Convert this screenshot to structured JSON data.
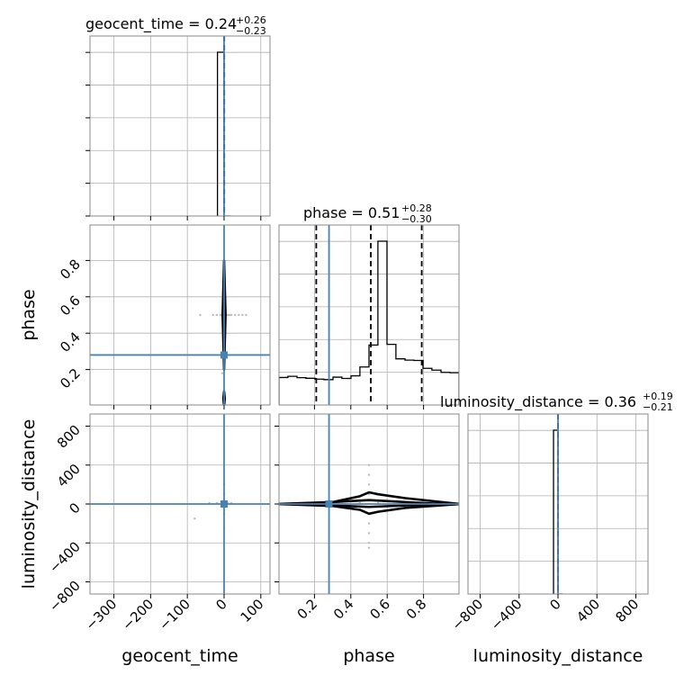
{
  "chart_data": {
    "type": "corner",
    "parameters": [
      "geocent_time",
      "phase",
      "luminosity_distance"
    ],
    "colors": {
      "truth": "#4682b4",
      "hist": "#000000",
      "grid": "#b0b0b0",
      "scatter": "#bbbbbb"
    },
    "titles": [
      {
        "param": "geocent_time",
        "main": "geocent_time = 0.24",
        "plus": "+0.26",
        "minus": "−0.23"
      },
      {
        "param": "phase",
        "main": "phase = 0.51",
        "plus": "+0.28",
        "minus": "−0.30"
      },
      {
        "param": "luminosity_distance",
        "main": "luminosity_distance = 0.36",
        "plus": "+0.19",
        "minus": "−0.21"
      }
    ],
    "ranges": {
      "geocent_time": [
        -365,
        125
      ],
      "phase": [
        0.005,
        0.995
      ],
      "luminosity_distance": [
        -925,
        925
      ]
    },
    "ticks": {
      "geocent_time": [
        -300,
        -200,
        -100,
        0,
        100
      ],
      "phase": [
        0.2,
        0.4,
        0.6,
        0.8
      ],
      "luminosity_distance": [
        -800,
        -400,
        0,
        400,
        800
      ]
    },
    "tick_labels": {
      "geocent_time": [
        "−300",
        "−200",
        "−100",
        "0",
        "100"
      ],
      "phase": [
        "0.2",
        "0.4",
        "0.6",
        "0.8"
      ],
      "luminosity_distance": [
        "−800",
        "−400",
        "0",
        "400",
        "800"
      ]
    },
    "truths": {
      "geocent_time": 0,
      "phase": 0.28,
      "luminosity_distance": 0
    },
    "quantiles": {
      "geocent_time": [
        0.01,
        0.24,
        0.5
      ],
      "phase": [
        0.21,
        0.51,
        0.79
      ],
      "luminosity_distance": [
        -0.05,
        0.36,
        0.55
      ]
    },
    "histograms": {
      "geocent_time": {
        "edges": [
          -18,
          0,
          18
        ],
        "counts": [
          1,
          0
        ]
      },
      "phase": {
        "edges": [
          0.005,
          0.054,
          0.104,
          0.153,
          0.203,
          0.252,
          0.302,
          0.351,
          0.401,
          0.45,
          0.5,
          0.549,
          0.599,
          0.648,
          0.698,
          0.747,
          0.797,
          0.846,
          0.896,
          0.945,
          0.995
        ],
        "counts": [
          0.168,
          0.175,
          0.167,
          0.163,
          0.158,
          0.155,
          0.17,
          0.162,
          0.178,
          0.232,
          0.366,
          1.0,
          0.37,
          0.282,
          0.274,
          0.272,
          0.224,
          0.213,
          0.199,
          0.197
        ]
      },
      "luminosity_distance": {
        "edges": [
          -46,
          0,
          46
        ],
        "counts": [
          1,
          0
        ]
      }
    },
    "scatter": {
      "geocent_time_phase": [
        [
          -65,
          0.5
        ],
        [
          -30,
          0.5
        ],
        [
          -20,
          0.5
        ],
        [
          -10,
          0.5
        ],
        [
          -5,
          0.5
        ],
        [
          10,
          0.5
        ],
        [
          15,
          0.5
        ],
        [
          20,
          0.5
        ],
        [
          30,
          0.5
        ],
        [
          40,
          0.5
        ],
        [
          50,
          0.5
        ],
        [
          60,
          0.5
        ],
        [
          -5,
          0.18
        ],
        [
          2,
          0.35
        ]
      ],
      "geocent_time_luminosity_distance": [
        [
          -80,
          -150
        ],
        [
          -40,
          10
        ],
        [
          -20,
          10
        ],
        [
          -5,
          10
        ],
        [
          10,
          10
        ],
        [
          20,
          10
        ],
        [
          0,
          100
        ],
        [
          0,
          200
        ],
        [
          0,
          -100
        ],
        [
          0,
          -250
        ]
      ],
      "phase_luminosity_distance": [
        [
          0.5,
          100
        ],
        [
          0.5,
          200
        ],
        [
          0.5,
          300
        ],
        [
          0.5,
          400
        ],
        [
          0.5,
          -100
        ],
        [
          0.5,
          -200
        ],
        [
          0.5,
          -300
        ],
        [
          0.5,
          -400
        ],
        [
          0.5,
          -450
        ],
        [
          0.45,
          10
        ],
        [
          0.55,
          10
        ]
      ]
    },
    "contours": {
      "geocent_time_phase": [
        [
          [
            0,
            0.08
          ],
          [
            2,
            0.04
          ],
          [
            0,
            0.0
          ],
          [
            -2,
            0.04
          ]
        ],
        [
          [
            -4,
            0.5
          ],
          [
            0,
            0.8
          ],
          [
            4,
            0.5
          ],
          [
            0,
            0.2
          ]
        ],
        [
          [
            0,
            0.58
          ],
          [
            3,
            0.53
          ],
          [
            0,
            0.47
          ],
          [
            -3,
            0.53
          ]
        ]
      ],
      "phase_luminosity_distance": [
        [
          [
            0.0,
            0
          ],
          [
            0.3,
            20
          ],
          [
            0.45,
            80
          ],
          [
            0.5,
            120
          ],
          [
            0.55,
            100
          ],
          [
            0.7,
            60
          ],
          [
            1.0,
            0
          ],
          [
            0.7,
            -40
          ],
          [
            0.55,
            -80
          ],
          [
            0.5,
            -100
          ],
          [
            0.45,
            -60
          ],
          [
            0.3,
            -20
          ]
        ],
        [
          [
            0.1,
            0
          ],
          [
            0.5,
            40
          ],
          [
            0.9,
            0
          ],
          [
            0.5,
            -30
          ]
        ]
      ]
    },
    "axis_labels": {
      "x": [
        "geocent_time",
        "phase",
        "luminosity_distance"
      ],
      "y": [
        "phase",
        "luminosity_distance"
      ]
    }
  }
}
